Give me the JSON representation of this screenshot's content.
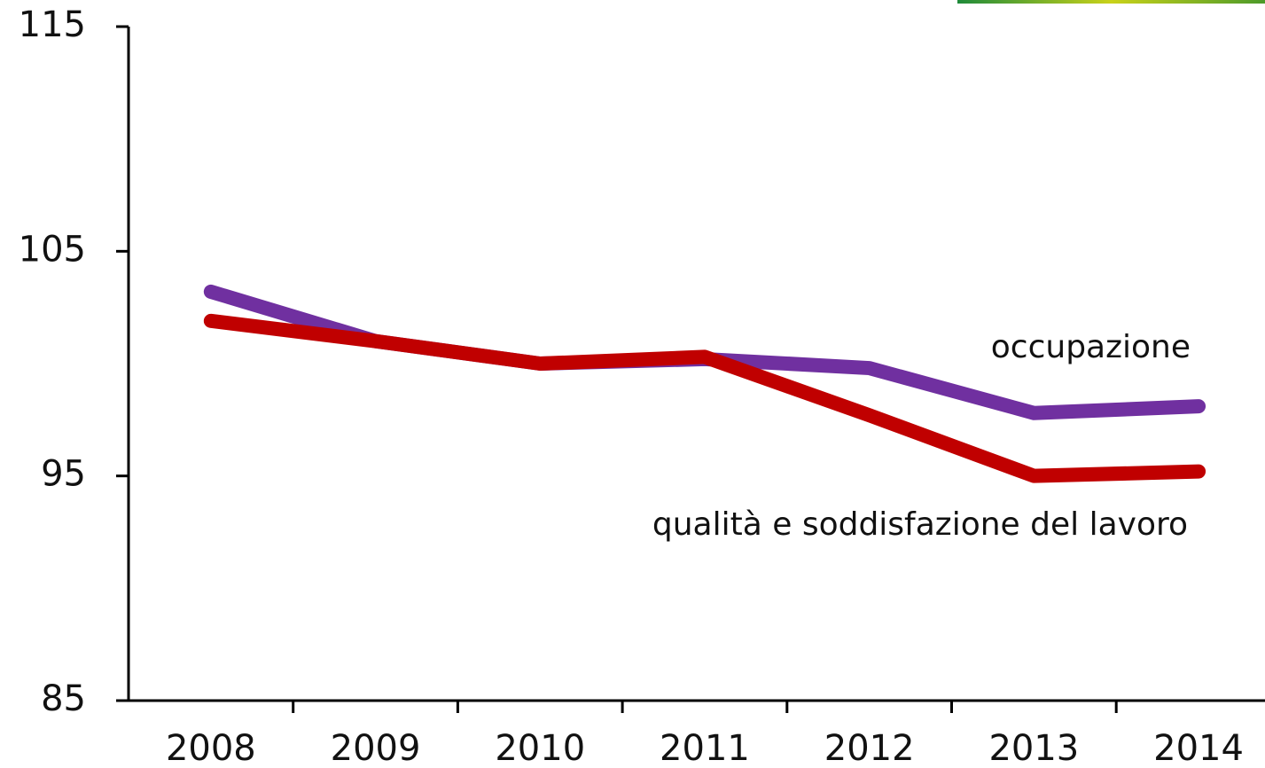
{
  "chart_data": {
    "type": "line",
    "categories": [
      "2008",
      "2009",
      "2010",
      "2011",
      "2012",
      "2013",
      "2014"
    ],
    "series": [
      {
        "name": "occupazione",
        "color": "#7030a0",
        "values": [
          103.2,
          101.0,
          100.0,
          100.2,
          99.8,
          97.8,
          98.1
        ]
      },
      {
        "name": "qualità e soddisfazione del lavoro",
        "color": "#c00000",
        "values": [
          101.9,
          101.0,
          100.0,
          100.3,
          97.7,
          95.0,
          95.2
        ]
      }
    ],
    "ylim": [
      85,
      115
    ],
    "yticks": [
      85,
      95,
      105,
      115
    ],
    "grid": false
  }
}
